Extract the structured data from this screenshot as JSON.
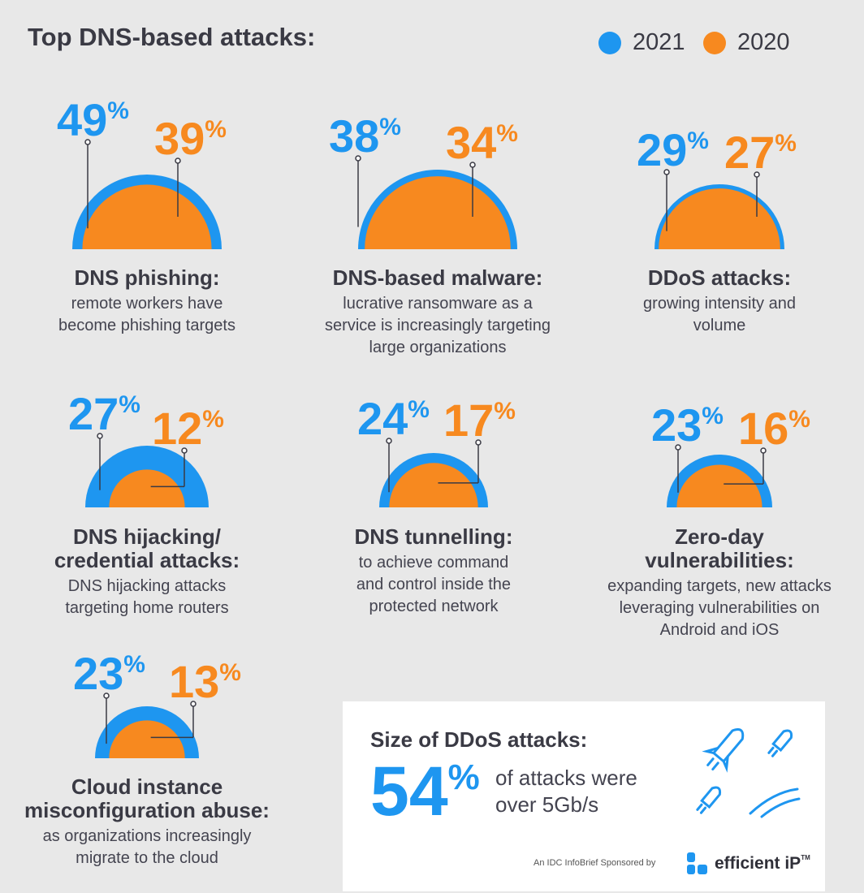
{
  "header": {
    "title": "Top DNS-based attacks:",
    "legend": [
      {
        "label": "2021",
        "color": "#1e96f0"
      },
      {
        "label": "2020",
        "color": "#f7891f"
      }
    ]
  },
  "colors": {
    "y2021": "#1e96f0",
    "y2020": "#f7891f"
  },
  "chart_data": {
    "type": "semicircle-comparison",
    "series": [
      {
        "name": "2021"
      },
      {
        "name": "2020"
      }
    ],
    "items": [
      {
        "title": "DNS phishing:",
        "title2": "",
        "description": [
          "remote workers have",
          "become phishing targets"
        ],
        "v2021": 49,
        "v2020": 39,
        "p2021": "49",
        "p2020": "39"
      },
      {
        "title": "DNS-based malware:",
        "title2": "",
        "description": [
          "lucrative ransomware as a",
          "service is increasingly targeting",
          "large organizations"
        ],
        "v2021": 38,
        "v2020": 34,
        "p2021": "38",
        "p2020": "34"
      },
      {
        "title": "DDoS attacks:",
        "title2": "",
        "description": [
          "growing intensity and",
          "volume"
        ],
        "v2021": 29,
        "v2020": 27,
        "p2021": "29",
        "p2020": "27"
      },
      {
        "title": "DNS hijacking/",
        "title2": "credential attacks:",
        "description": [
          "DNS hijacking attacks",
          "targeting home routers"
        ],
        "v2021": 27,
        "v2020": 12,
        "p2021": "27",
        "p2020": "12"
      },
      {
        "title": "DNS tunnelling:",
        "title2": "",
        "description": [
          "to achieve command",
          "and control inside the",
          "protected network"
        ],
        "v2021": 24,
        "v2020": 17,
        "p2021": "24",
        "p2020": "17"
      },
      {
        "title": "Zero-day",
        "title2": "vulnerabilities:",
        "description": [
          "expanding targets, new attacks",
          "leveraging vulnerabilities on",
          "Android and iOS"
        ],
        "v2021": 23,
        "v2020": 16,
        "p2021": "23",
        "p2020": "16"
      },
      {
        "title": "Cloud instance",
        "title2": "misconfiguration abuse:",
        "description": [
          "as organizations increasingly",
          "migrate to the cloud"
        ],
        "v2021": 23,
        "v2020": 13,
        "p2021": "23",
        "p2020": "13"
      }
    ]
  },
  "percent_sign": "%",
  "ddos_box": {
    "title": "Size of DDoS attacks:",
    "value": "54",
    "percent_sign": "%",
    "description_line1": "of attacks were",
    "description_line2": "over 5Gb/s",
    "sponsor_text": "An IDC InfoBrief Sponsored by",
    "logo_text": "efficient iP",
    "logo_tm": "TM",
    "icon": "rockets-icon"
  }
}
